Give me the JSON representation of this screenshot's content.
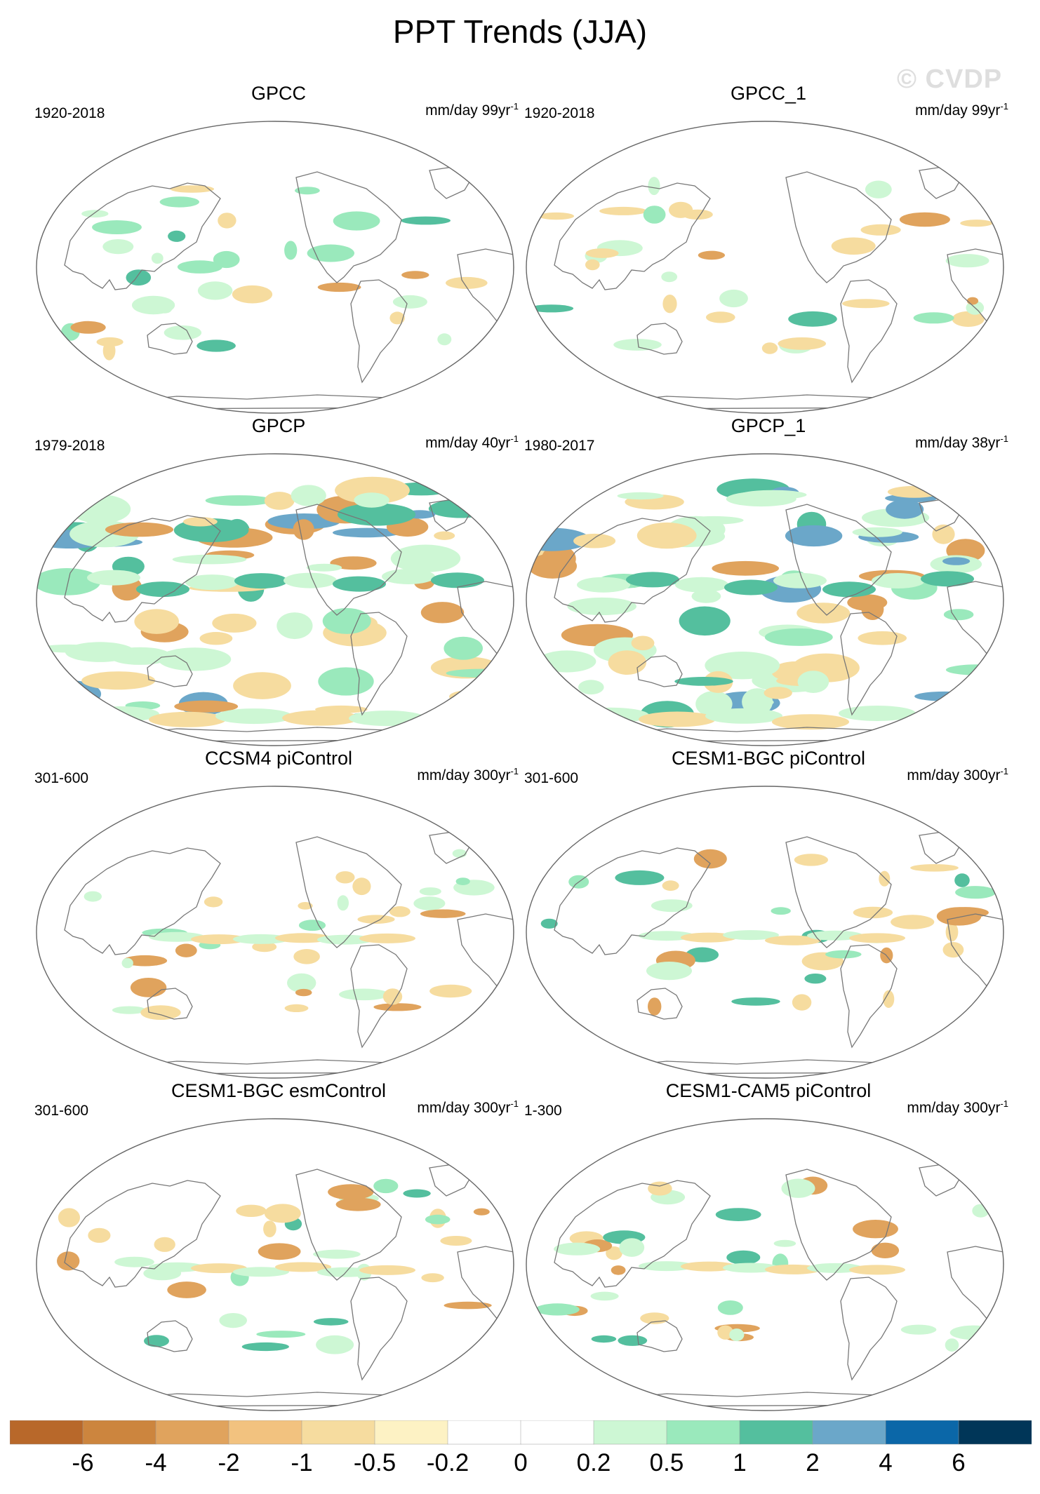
{
  "title": "PPT Trends (JJA)",
  "watermark": "© CVDP",
  "panels": [
    {
      "name": "GPCC",
      "period": "1920-2018",
      "units": "mm/day 99yr",
      "units_exp": "-1"
    },
    {
      "name": "GPCC_1",
      "period": "1920-2018",
      "units": "mm/day 99yr",
      "units_exp": "-1"
    },
    {
      "name": "GPCP",
      "period": "1979-2018",
      "units": "mm/day 40yr",
      "units_exp": "-1"
    },
    {
      "name": "GPCP_1",
      "period": "1980-2017",
      "units": "mm/day 38yr",
      "units_exp": "-1"
    },
    {
      "name": "CCSM4 piControl",
      "period": "301-600",
      "units": "mm/day 300yr",
      "units_exp": "-1"
    },
    {
      "name": "CESM1-BGC piControl",
      "period": "301-600",
      "units": "mm/day 300yr",
      "units_exp": "-1"
    },
    {
      "name": "CESM1-BGC esmControl",
      "period": "301-600",
      "units": "mm/day 300yr",
      "units_exp": "-1"
    },
    {
      "name": "CESM1-CAM5 piControl",
      "period": "1-300",
      "units": "mm/day 300yr",
      "units_exp": "-1"
    }
  ],
  "colorbar": {
    "labels": [
      "-6",
      "-4",
      "-2",
      "-1",
      "-0.5",
      "-0.2",
      "0",
      "0.2",
      "0.5",
      "1",
      "2",
      "4",
      "6"
    ],
    "colors": [
      "#b8682a",
      "#cc853e",
      "#e0a35d",
      "#f2c27f",
      "#f6dc9f",
      "#fdf2c4",
      "#ffffff",
      "#ffffff",
      "#cdf7d4",
      "#9ae9bc",
      "#54bf9e",
      "#6ba7c9",
      "#0b67a8",
      "#003658"
    ]
  },
  "map_colors": {
    "land_line": "#777777",
    "brown": "#e0a35d",
    "tan": "#f6dc9f",
    "light_green": "#cdf7d4",
    "green": "#9ae9bc",
    "teal": "#54bf9e",
    "blue": "#6ba7c9"
  }
}
